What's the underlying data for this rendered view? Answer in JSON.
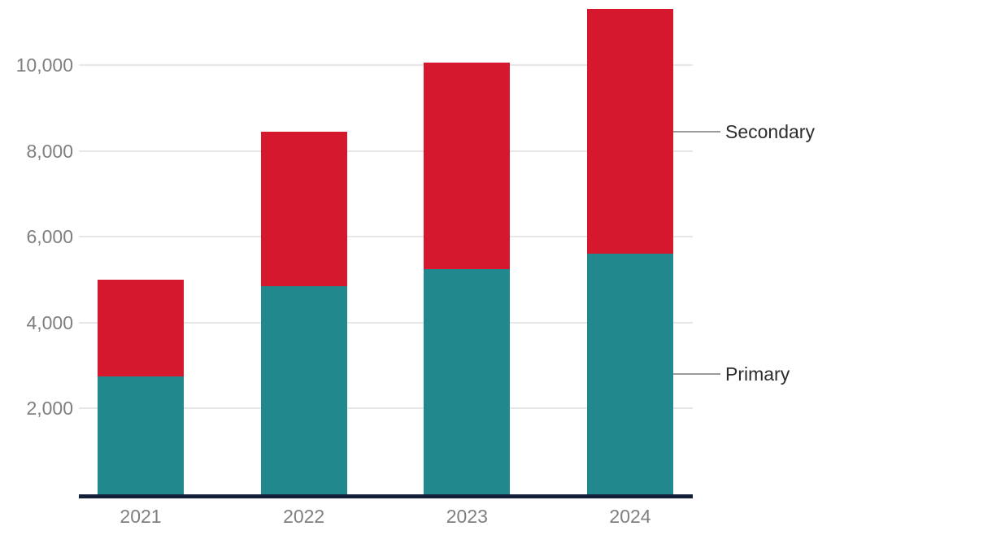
{
  "chart_data": {
    "type": "bar",
    "stacked": true,
    "title": "",
    "xlabel": "",
    "ylabel": "",
    "categories": [
      "2021",
      "2022",
      "2023",
      "2024"
    ],
    "series": [
      {
        "name": "Primary",
        "color": "#21898d",
        "values": [
          2750,
          4850,
          5250,
          5600
        ]
      },
      {
        "name": "Secondary",
        "color": "#d6182e",
        "values": [
          2250,
          3600,
          4800,
          5700
        ]
      }
    ],
    "yticks": [
      {
        "value": 2000,
        "label": "2,000"
      },
      {
        "value": 4000,
        "label": "4,000"
      },
      {
        "value": 6000,
        "label": "6,000"
      },
      {
        "value": 8000,
        "label": "8,000"
      },
      {
        "value": 10000,
        "label": "10,000"
      }
    ],
    "ylim": [
      0,
      11500
    ],
    "grid": "horizontal",
    "legend_position": "right-callout",
    "colors": {
      "background": "#ffffff",
      "axis_line": "#14203a",
      "gridline": "#e7e7e7",
      "callout_line": "#9b9b9b",
      "axis_text": "#7f7f7f",
      "legend_text": "#2d2d2d"
    }
  }
}
